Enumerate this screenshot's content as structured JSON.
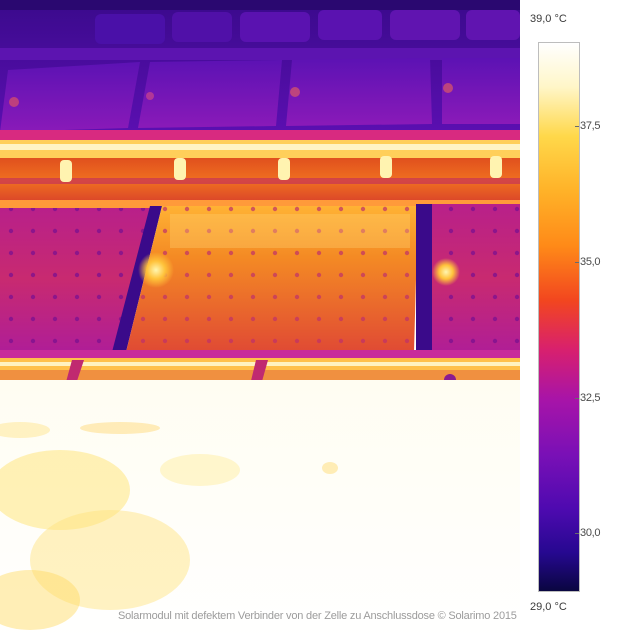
{
  "colorbar": {
    "max_label": "39,0 °C",
    "min_label": "29,0 °C",
    "ticks": [
      "37,5",
      "35,0",
      "32,5",
      "30,0"
    ],
    "colors": [
      "#ffffff",
      "#ffd84a",
      "#ff8a18",
      "#d8206e",
      "#7a10b6",
      "#0a0640"
    ]
  },
  "caption": "Solarmodul mit defektem Verbinder von der Zelle zu Anschlussdose © Solarimo 2015"
}
